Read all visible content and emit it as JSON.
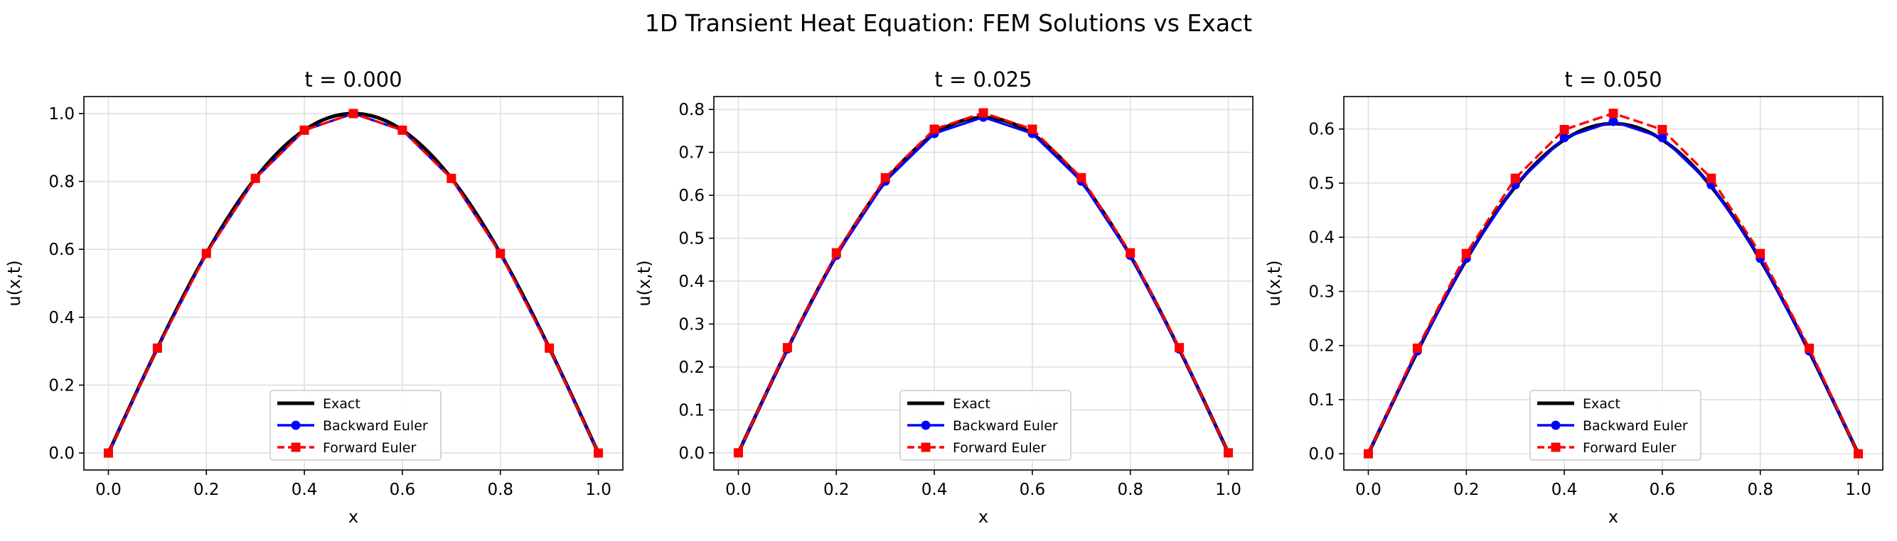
{
  "figure_title": "1D Transient Heat Equation: FEM Solutions vs Exact",
  "legend_labels": [
    "Exact",
    "Backward Euler",
    "Forward Euler"
  ],
  "colors": {
    "exact": "#000000",
    "backward": "#0000ff",
    "forward": "#ff0000",
    "grid": "#e0e0e0"
  },
  "chart_data": [
    {
      "type": "line",
      "title": "t = 0.000",
      "xlabel": "x",
      "ylabel": "u(x,t)",
      "xlim": [
        -0.05,
        1.05
      ],
      "ylim": [
        -0.05,
        1.05
      ],
      "xticks": [
        0.0,
        0.2,
        0.4,
        0.6,
        0.8,
        1.0
      ],
      "xtick_labels": [
        "0.0",
        "0.2",
        "0.4",
        "0.6",
        "0.8",
        "1.0"
      ],
      "yticks": [
        0.0,
        0.2,
        0.4,
        0.6,
        0.8,
        1.0
      ],
      "ytick_labels": [
        "0.0",
        "0.2",
        "0.4",
        "0.6",
        "0.8",
        "1.0"
      ],
      "grid": true,
      "legend_position": "lower center",
      "exact_amplitude": 1.0,
      "x": [
        0.0,
        0.1,
        0.2,
        0.3,
        0.4,
        0.5,
        0.6,
        0.7,
        0.8,
        0.9,
        1.0
      ],
      "series": [
        {
          "name": "Backward Euler",
          "style": "solid-circle",
          "values": [
            0.0,
            0.309,
            0.588,
            0.809,
            0.951,
            1.0,
            0.951,
            0.809,
            0.588,
            0.309,
            0.0
          ]
        },
        {
          "name": "Forward Euler",
          "style": "dashed-square",
          "values": [
            0.0,
            0.309,
            0.588,
            0.809,
            0.951,
            1.0,
            0.951,
            0.809,
            0.588,
            0.309,
            0.0
          ]
        }
      ]
    },
    {
      "type": "line",
      "title": "t = 0.025",
      "xlabel": "x",
      "ylabel": "u(x,t)",
      "xlim": [
        -0.05,
        1.05
      ],
      "ylim": [
        -0.04,
        0.83
      ],
      "xticks": [
        0.0,
        0.2,
        0.4,
        0.6,
        0.8,
        1.0
      ],
      "xtick_labels": [
        "0.0",
        "0.2",
        "0.4",
        "0.6",
        "0.8",
        "1.0"
      ],
      "yticks": [
        0.0,
        0.1,
        0.2,
        0.3,
        0.4,
        0.5,
        0.6,
        0.7,
        0.8
      ],
      "ytick_labels": [
        "0.0",
        "0.1",
        "0.2",
        "0.3",
        "0.4",
        "0.5",
        "0.6",
        "0.7",
        "0.8"
      ],
      "grid": true,
      "legend_position": "lower center",
      "exact_amplitude": 0.781,
      "x": [
        0.0,
        0.1,
        0.2,
        0.3,
        0.4,
        0.5,
        0.6,
        0.7,
        0.8,
        0.9,
        1.0
      ],
      "series": [
        {
          "name": "Backward Euler",
          "style": "solid-circle",
          "values": [
            0.0,
            0.242,
            0.46,
            0.633,
            0.744,
            0.782,
            0.744,
            0.633,
            0.46,
            0.242,
            0.0
          ]
        },
        {
          "name": "Forward Euler",
          "style": "dashed-square",
          "values": [
            0.0,
            0.245,
            0.466,
            0.641,
            0.754,
            0.792,
            0.754,
            0.641,
            0.466,
            0.245,
            0.0
          ]
        }
      ]
    },
    {
      "type": "line",
      "title": "t = 0.050",
      "xlabel": "x",
      "ylabel": "u(x,t)",
      "xlim": [
        -0.05,
        1.05
      ],
      "ylim": [
        -0.03,
        0.66
      ],
      "xticks": [
        0.0,
        0.2,
        0.4,
        0.6,
        0.8,
        1.0
      ],
      "xtick_labels": [
        "0.0",
        "0.2",
        "0.4",
        "0.6",
        "0.8",
        "1.0"
      ],
      "yticks": [
        0.0,
        0.1,
        0.2,
        0.3,
        0.4,
        0.5,
        0.6
      ],
      "ytick_labels": [
        "0.0",
        "0.1",
        "0.2",
        "0.3",
        "0.4",
        "0.5",
        "0.6"
      ],
      "grid": true,
      "legend_position": "lower center",
      "exact_amplitude": 0.61,
      "x": [
        0.0,
        0.1,
        0.2,
        0.3,
        0.4,
        0.5,
        0.6,
        0.7,
        0.8,
        0.9,
        1.0
      ],
      "series": [
        {
          "name": "Backward Euler",
          "style": "solid-circle",
          "values": [
            0.0,
            0.19,
            0.361,
            0.497,
            0.584,
            0.614,
            0.584,
            0.497,
            0.361,
            0.19,
            0.0
          ]
        },
        {
          "name": "Forward Euler",
          "style": "dashed-square",
          "values": [
            0.0,
            0.195,
            0.37,
            0.509,
            0.599,
            0.629,
            0.599,
            0.509,
            0.37,
            0.195,
            0.0
          ]
        }
      ]
    }
  ]
}
